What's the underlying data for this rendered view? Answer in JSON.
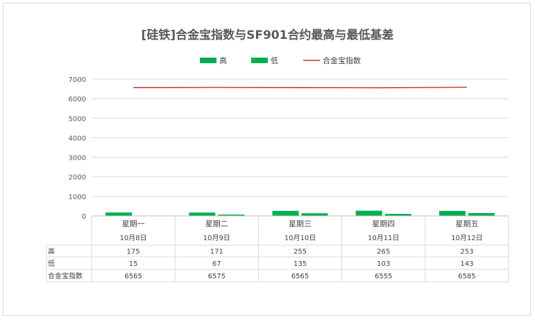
{
  "chart_data": {
    "type": "bar",
    "title": "[硅铁]合金宝指数与SF901合约最高与最低基差",
    "categories": [
      {
        "day": "星期一",
        "date": "10月8日"
      },
      {
        "day": "星期二",
        "date": "10月9日"
      },
      {
        "day": "星期三",
        "date": "10月10日"
      },
      {
        "day": "星期四",
        "date": "10月11日"
      },
      {
        "day": "星期五",
        "date": "10月12日"
      }
    ],
    "series": [
      {
        "name": "高",
        "type": "bar",
        "color": "#00b050",
        "values": [
          175,
          171,
          255,
          265,
          253
        ]
      },
      {
        "name": "低",
        "type": "bar",
        "color": "#00b050",
        "values": [
          15,
          67,
          135,
          103,
          143
        ]
      },
      {
        "name": "合金宝指数",
        "type": "line",
        "color": "#c00000",
        "values": [
          6565,
          6575,
          6565,
          6555,
          6585
        ]
      }
    ],
    "yticks": [
      0,
      1000,
      2000,
      3000,
      4000,
      5000,
      6000,
      7000
    ],
    "ylim": [
      0,
      7000
    ],
    "grid": true,
    "legend": "top",
    "data_table": true
  }
}
